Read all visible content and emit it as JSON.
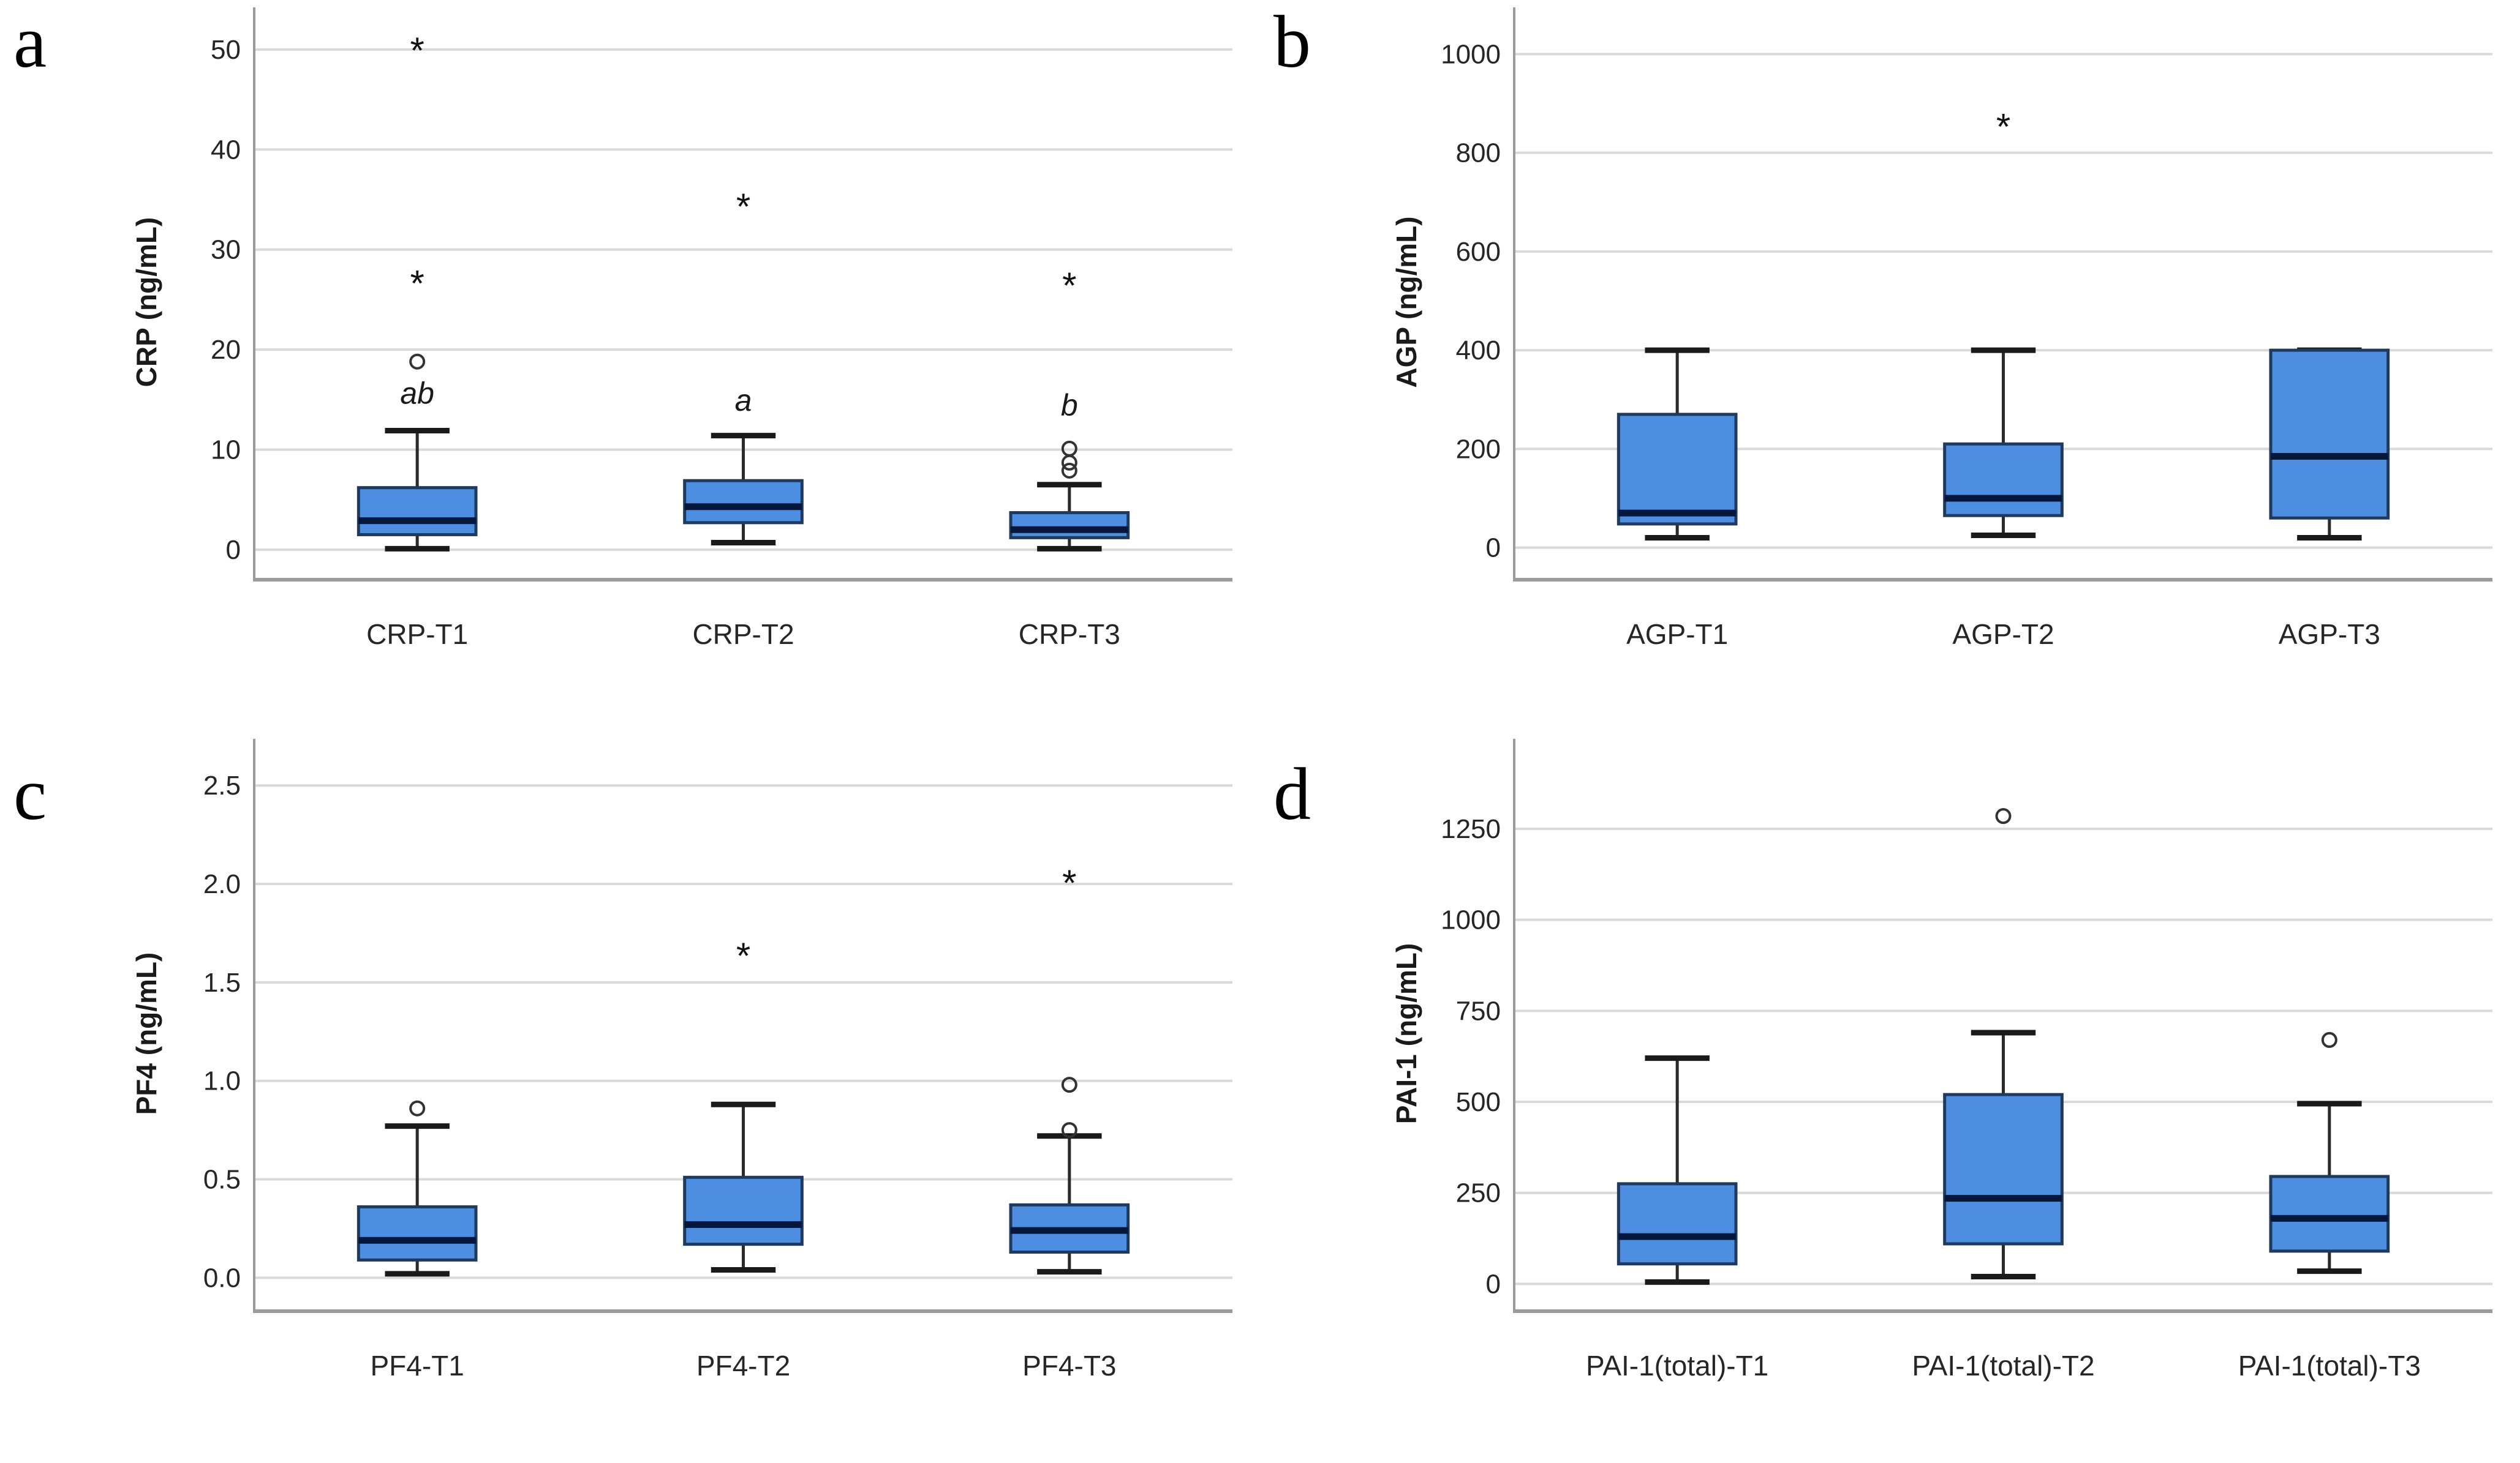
{
  "figure": {
    "background": "#ffffff",
    "panel_letters": [
      "a",
      "b",
      "c",
      "d"
    ]
  },
  "style": {
    "box_fill": "#4e8ee0",
    "box_border": "#1f3a5f",
    "median_color": "#05173a",
    "whisker_color": "#2b2b2b",
    "cap_color": "#1a1a1a",
    "gridline_color": "#d9d9d9",
    "axis_line_color": "#9b9b9b",
    "tick_label_color": "#262626",
    "category_label_color": "#262626",
    "outlier_color": "#333333",
    "extreme_color": "#111111",
    "annotation_color": "#1a1a1a"
  },
  "chart_data": [
    {
      "type": "boxplot",
      "panel_letter": "a",
      "ylabel": "CRP (ng/mL)",
      "ylim": [
        -3,
        52.5
      ],
      "yticks": [
        {
          "value": 0,
          "label": "0"
        },
        {
          "value": 10,
          "label": "10"
        },
        {
          "value": 20,
          "label": "20"
        },
        {
          "value": 30,
          "label": "30"
        },
        {
          "value": 40,
          "label": "40"
        },
        {
          "value": 50,
          "label": "50"
        }
      ],
      "grid": true,
      "categories": [
        "CRP-T1",
        "CRP-T2",
        "CRP-T3"
      ],
      "boxes": [
        {
          "label": "CRP-T1",
          "whisker_low": 0.1,
          "q1": 1.5,
          "median": 2.9,
          "q3": 6.2,
          "whisker_high": 11.9,
          "outliers": [
            {
              "marker": "circle",
              "value": 18.8
            },
            {
              "marker": "star",
              "value": 26.7
            },
            {
              "marker": "star",
              "value": 50.0
            }
          ],
          "annotation": {
            "text": "ab",
            "value": 14.6
          }
        },
        {
          "label": "CRP-T2",
          "whisker_low": 0.7,
          "q1": 2.7,
          "median": 4.3,
          "q3": 6.9,
          "whisker_high": 11.4,
          "outliers": [
            {
              "marker": "star",
              "value": 34.4
            }
          ],
          "annotation": {
            "text": "a",
            "value": 13.9
          }
        },
        {
          "label": "CRP-T3",
          "whisker_low": 0.1,
          "q1": 1.2,
          "median": 2.0,
          "q3": 3.7,
          "whisker_high": 6.5,
          "outliers": [
            {
              "marker": "circle",
              "value": 7.9
            },
            {
              "marker": "circle",
              "value": 8.7
            },
            {
              "marker": "circle",
              "value": 10.1
            },
            {
              "marker": "star",
              "value": 26.5
            }
          ],
          "annotation": {
            "text": "b",
            "value": 13.4
          }
        }
      ]
    },
    {
      "type": "boxplot",
      "panel_letter": "b",
      "ylabel": "AGP (ng/mL)",
      "ylim": [
        -65,
        1060
      ],
      "yticks": [
        {
          "value": 0,
          "label": "0"
        },
        {
          "value": 200,
          "label": "200"
        },
        {
          "value": 400,
          "label": "400"
        },
        {
          "value": 600,
          "label": "600"
        },
        {
          "value": 800,
          "label": "800"
        },
        {
          "value": 1000,
          "label": "1000"
        }
      ],
      "grid": true,
      "categories": [
        "AGP-T1",
        "AGP-T2",
        "AGP-T3"
      ],
      "boxes": [
        {
          "label": "AGP-T1",
          "whisker_low": 20,
          "q1": 48,
          "median": 70,
          "q3": 270,
          "whisker_high": 400,
          "outliers": [],
          "annotation": null
        },
        {
          "label": "AGP-T2",
          "whisker_low": 25,
          "q1": 65,
          "median": 100,
          "q3": 210,
          "whisker_high": 400,
          "outliers": [
            {
              "marker": "star",
              "value": 855
            }
          ],
          "annotation": null
        },
        {
          "label": "AGP-T3",
          "whisker_low": 20,
          "q1": 60,
          "median": 185,
          "q3": 400,
          "whisker_high": 400,
          "outliers": [],
          "annotation": null
        }
      ]
    },
    {
      "type": "boxplot",
      "panel_letter": "c",
      "ylabel": "PF4 (ng/mL)",
      "ylim": [
        -0.17,
        2.65
      ],
      "yticks": [
        {
          "value": 0.0,
          "label": "0.0"
        },
        {
          "value": 0.5,
          "label": "0.5"
        },
        {
          "value": 1.0,
          "label": "1.0"
        },
        {
          "value": 1.5,
          "label": "1.5"
        },
        {
          "value": 2.0,
          "label": "2.0"
        },
        {
          "value": 2.5,
          "label": "2.5"
        }
      ],
      "grid": true,
      "categories": [
        "PF4-T1",
        "PF4-T2",
        "PF4-T3"
      ],
      "boxes": [
        {
          "label": "PF4-T1",
          "whisker_low": 0.02,
          "q1": 0.09,
          "median": 0.19,
          "q3": 0.36,
          "whisker_high": 0.77,
          "outliers": [
            {
              "marker": "circle",
              "value": 0.86
            }
          ],
          "annotation": null
        },
        {
          "label": "PF4-T2",
          "whisker_low": 0.04,
          "q1": 0.17,
          "median": 0.27,
          "q3": 0.51,
          "whisker_high": 0.88,
          "outliers": [
            {
              "marker": "star",
              "value": 1.64
            }
          ],
          "annotation": null
        },
        {
          "label": "PF4-T3",
          "whisker_low": 0.03,
          "q1": 0.13,
          "median": 0.24,
          "q3": 0.37,
          "whisker_high": 0.72,
          "outliers": [
            {
              "marker": "circle",
              "value": 0.75
            },
            {
              "marker": "circle",
              "value": 0.98
            },
            {
              "marker": "star",
              "value": 2.01
            }
          ],
          "annotation": null
        }
      ]
    },
    {
      "type": "boxplot",
      "panel_letter": "d",
      "ylabel": "PAI-1 (ng/mL)",
      "ylim": [
        -75,
        1450
      ],
      "yticks": [
        {
          "value": 0,
          "label": "0"
        },
        {
          "value": 250,
          "label": "250"
        },
        {
          "value": 500,
          "label": "500"
        },
        {
          "value": 750,
          "label": "750"
        },
        {
          "value": 1000,
          "label": "1000"
        },
        {
          "value": 1250,
          "label": "1250"
        }
      ],
      "grid": true,
      "categories": [
        "PAI-1(total)-T1",
        "PAI-1(total)-T2",
        "PAI-1(total)-T3"
      ],
      "boxes": [
        {
          "label": "PAI-1(total)-T1",
          "whisker_low": 5,
          "q1": 55,
          "median": 130,
          "q3": 275,
          "whisker_high": 620,
          "outliers": [],
          "annotation": null
        },
        {
          "label": "PAI-1(total)-T2",
          "whisker_low": 20,
          "q1": 110,
          "median": 235,
          "q3": 520,
          "whisker_high": 690,
          "outliers": [
            {
              "marker": "circle",
              "value": 1285
            }
          ],
          "annotation": null
        },
        {
          "label": "PAI-1(total)-T3",
          "whisker_low": 35,
          "q1": 90,
          "median": 180,
          "q3": 295,
          "whisker_high": 495,
          "outliers": [
            {
              "marker": "circle",
              "value": 670
            }
          ],
          "annotation": null
        }
      ]
    }
  ]
}
